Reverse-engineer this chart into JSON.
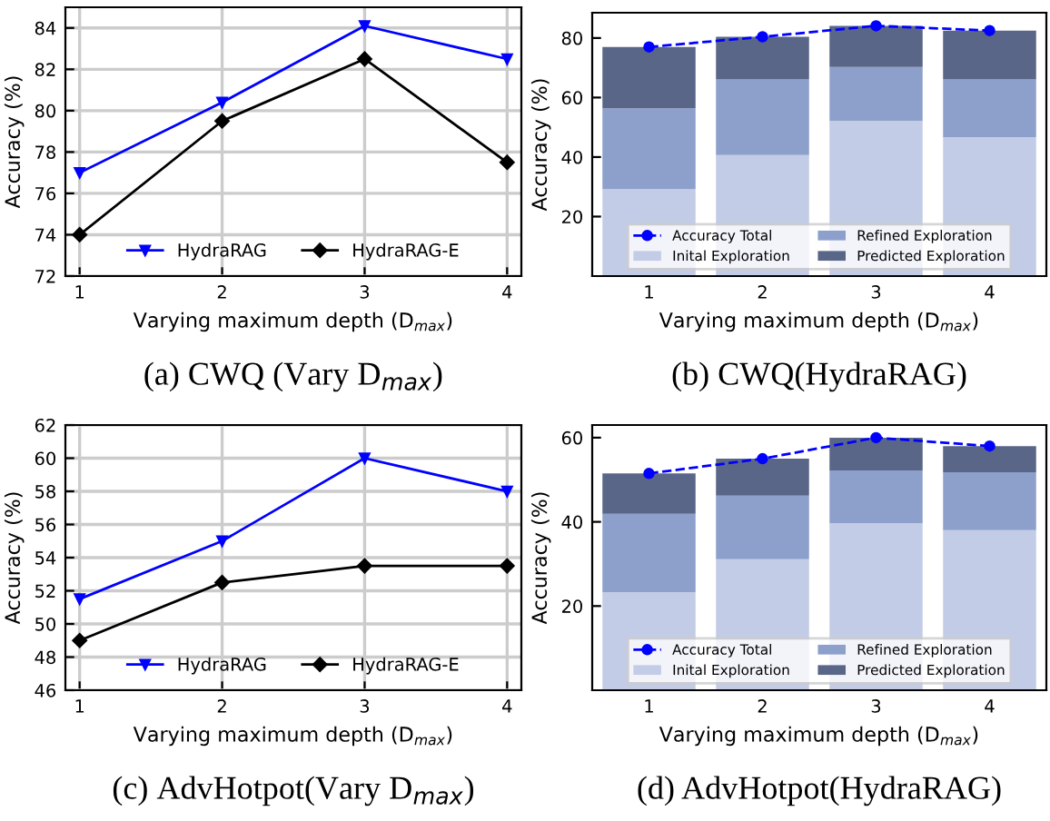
{
  "chart_data": [
    {
      "type": "line",
      "title": "(a) CWQ (Vary D$_{max}$)",
      "xlabel": "Varying maximum depth (D$_{max}$)",
      "ylabel": "Accuracy (%)",
      "categories": [
        "1",
        "2",
        "3",
        "4"
      ],
      "ylim": [
        72,
        85
      ],
      "yticks": [
        72,
        74,
        76,
        78,
        80,
        82,
        84
      ],
      "grid": true,
      "legend": "bottom",
      "series": [
        {
          "name": "HydraRAG",
          "color": "#0000ff",
          "marker": "triangle",
          "values": [
            77,
            80.4,
            84.1,
            82.5
          ]
        },
        {
          "name": "HydraRAG-E",
          "color": "#000000",
          "marker": "diamond",
          "values": [
            74,
            79.5,
            82.5,
            77.5
          ]
        }
      ]
    },
    {
      "type": "bar",
      "stacked": true,
      "title": "(b) CWQ(HydraRAG)",
      "xlabel": "Varying maximum depth (D$_{max}$)",
      "ylabel": "Accuracy (%)",
      "categories": [
        "1",
        "2",
        "3",
        "4"
      ],
      "ylim": [
        0,
        88.5
      ],
      "yticks": [
        20,
        40,
        60,
        80
      ],
      "legend": "bottom",
      "series": [
        {
          "name": "Accuracy Total",
          "type": "line",
          "line_style": "dashed",
          "marker": "circle",
          "color": "#0000ff",
          "values": [
            77,
            80.4,
            84.1,
            82.5
          ]
        },
        {
          "name": "Inital Exploration",
          "color": "#c3cce6",
          "values": [
            29.2,
            40.7,
            52.2,
            46.7
          ]
        },
        {
          "name": "Refined Exploration",
          "color": "#8da0cb",
          "values": [
            27.2,
            25.4,
            18.1,
            19.4
          ]
        },
        {
          "name": "Predicted Exploration",
          "color": "#5a6688",
          "values": [
            20.6,
            14.3,
            13.8,
            16.4
          ]
        }
      ]
    },
    {
      "type": "line",
      "title": "(c) AdvHotpot(Vary D$_{max}$)",
      "xlabel": "Varying maximum depth (D$_{max}$)",
      "ylabel": "Accuracy (%)",
      "categories": [
        "1",
        "2",
        "3",
        "4"
      ],
      "ylim": [
        46,
        62
      ],
      "yticks": [
        46,
        48,
        50,
        52,
        54,
        56,
        58,
        60,
        62
      ],
      "grid": true,
      "legend": "bottom",
      "series": [
        {
          "name": "HydraRAG",
          "color": "#0000ff",
          "marker": "triangle",
          "values": [
            51.5,
            55,
            60,
            58
          ]
        },
        {
          "name": "HydraRAG-E",
          "color": "#000000",
          "marker": "diamond",
          "values": [
            49,
            52.5,
            53.5,
            53.5
          ]
        }
      ]
    },
    {
      "type": "bar",
      "stacked": true,
      "title": "(d) AdvHotpot(HydraRAG)",
      "xlabel": "Varying maximum depth (D$_{max}$)",
      "ylabel": "Accuracy (%)",
      "categories": [
        "1",
        "2",
        "3",
        "4"
      ],
      "ylim": [
        0,
        63
      ],
      "yticks": [
        20,
        40,
        60
      ],
      "legend": "bottom",
      "series": [
        {
          "name": "Accuracy Total",
          "type": "line",
          "line_style": "dashed",
          "marker": "circle",
          "color": "#0000ff",
          "values": [
            51.5,
            55,
            60,
            58
          ]
        },
        {
          "name": "Inital Exploration",
          "color": "#c3cce6",
          "values": [
            23.3,
            31.1,
            39.7,
            38.0
          ]
        },
        {
          "name": "Refined Exploration",
          "color": "#8da0cb",
          "values": [
            18.6,
            15.1,
            12.5,
            13.8
          ]
        },
        {
          "name": "Predicted Exploration",
          "color": "#5a6688",
          "values": [
            9.6,
            8.8,
            7.8,
            6.2
          ]
        }
      ]
    }
  ]
}
